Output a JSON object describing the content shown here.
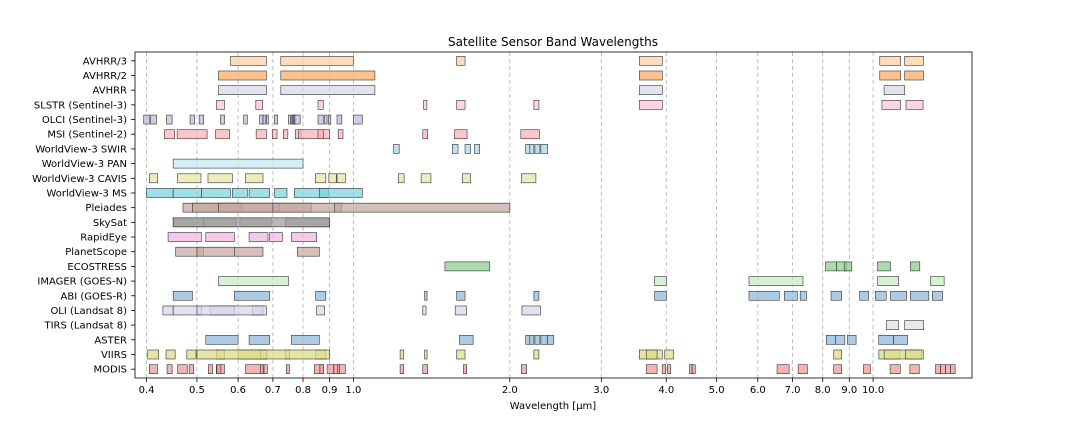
{
  "chart_data": {
    "type": "bar",
    "orientation": "horizontal",
    "title": "Satellite Sensor Band Wavelengths",
    "xlabel": "Wavelength [μm]",
    "x_scale": "log",
    "xlim": [
      0.38,
      15.5
    ],
    "x_ticks": [
      {
        "value": 0.4,
        "label": "0.4"
      },
      {
        "value": 0.5,
        "label": "0.5"
      },
      {
        "value": 0.6,
        "label": "0.6"
      },
      {
        "value": 0.7,
        "label": "0.7"
      },
      {
        "value": 0.8,
        "label": "0.8"
      },
      {
        "value": 0.9,
        "label": "0.9"
      },
      {
        "value": 1.0,
        "label": "1.0"
      },
      {
        "value": 2.0,
        "label": "2.0"
      },
      {
        "value": 3.0,
        "label": "3.0"
      },
      {
        "value": 4.0,
        "label": "4.0"
      },
      {
        "value": 5.0,
        "label": "5.0"
      },
      {
        "value": 6.0,
        "label": "6.0"
      },
      {
        "value": 7.0,
        "label": "7.0"
      },
      {
        "value": 8.0,
        "label": "8.0"
      },
      {
        "value": 9.0,
        "label": "9.0"
      },
      {
        "value": 10.0,
        "label": "10.0"
      }
    ],
    "grid": "vertical-dashed",
    "sensors": [
      {
        "name": "AVHRR/3",
        "color": "#fdd0a2",
        "bands": [
          [
            0.58,
            0.68
          ],
          [
            0.725,
            1.0
          ],
          [
            1.58,
            1.64
          ],
          [
            3.55,
            3.93
          ],
          [
            10.3,
            11.3
          ],
          [
            11.5,
            12.5
          ]
        ]
      },
      {
        "name": "AVHRR/2",
        "color": "#fdae6b",
        "bands": [
          [
            0.55,
            0.68
          ],
          [
            0.725,
            1.1
          ],
          [
            3.55,
            3.93
          ],
          [
            10.3,
            11.3
          ],
          [
            11.5,
            12.5
          ]
        ]
      },
      {
        "name": "AVHRR",
        "color": "#dadaeb",
        "bands": [
          [
            0.55,
            0.68
          ],
          [
            0.725,
            1.1
          ],
          [
            3.55,
            3.93
          ],
          [
            10.5,
            11.5
          ]
        ]
      },
      {
        "name": "SLSTR (Sentinel-3)",
        "color": "#fcc5d8",
        "bands": [
          [
            0.545,
            0.565
          ],
          [
            0.649,
            0.669
          ],
          [
            0.855,
            0.875
          ],
          [
            1.365,
            1.385
          ],
          [
            1.58,
            1.64
          ],
          [
            2.225,
            2.275
          ],
          [
            3.55,
            3.93
          ],
          [
            10.4,
            11.3
          ],
          [
            11.57,
            12.48
          ]
        ]
      },
      {
        "name": "OLCI (Sentinel-3)",
        "color": "#bcbddc",
        "bands": [
          [
            0.395,
            0.405
          ],
          [
            0.407,
            0.418
          ],
          [
            0.437,
            0.448
          ],
          [
            0.485,
            0.495
          ],
          [
            0.505,
            0.515
          ],
          [
            0.555,
            0.565
          ],
          [
            0.615,
            0.625
          ],
          [
            0.66,
            0.67
          ],
          [
            0.67,
            0.677
          ],
          [
            0.68,
            0.685
          ],
          [
            0.705,
            0.715
          ],
          [
            0.75,
            0.757
          ],
          [
            0.76,
            0.762
          ],
          [
            0.764,
            0.767
          ],
          [
            0.767,
            0.769
          ],
          [
            0.77,
            0.79
          ],
          [
            0.855,
            0.875
          ],
          [
            0.88,
            0.89
          ],
          [
            0.895,
            0.905
          ],
          [
            0.93,
            0.95
          ],
          [
            1.0,
            1.04
          ]
        ]
      },
      {
        "name": "MSI (Sentinel-2)",
        "color": "#fbb4b9",
        "bands": [
          [
            0.433,
            0.453
          ],
          [
            0.458,
            0.523
          ],
          [
            0.543,
            0.578
          ],
          [
            0.65,
            0.68
          ],
          [
            0.698,
            0.713
          ],
          [
            0.733,
            0.748
          ],
          [
            0.773,
            0.793
          ],
          [
            0.785,
            0.9
          ],
          [
            0.855,
            0.875
          ],
          [
            0.935,
            0.955
          ],
          [
            1.36,
            1.39
          ],
          [
            1.565,
            1.655
          ],
          [
            2.1,
            2.28
          ]
        ]
      },
      {
        "name": "WorldView-3 SWIR",
        "color": "#a6d8e8",
        "bands": [
          [
            1.195,
            1.225
          ],
          [
            1.55,
            1.59
          ],
          [
            1.64,
            1.68
          ],
          [
            1.71,
            1.75
          ],
          [
            2.145,
            2.185
          ],
          [
            2.185,
            2.225
          ],
          [
            2.235,
            2.285
          ],
          [
            2.295,
            2.365
          ]
        ]
      },
      {
        "name": "WorldView-3 PAN",
        "color": "#c6e9f0",
        "bands": [
          [
            0.45,
            0.8
          ]
        ]
      },
      {
        "name": "WorldView-3 CAVIS",
        "color": "#e6e6a8",
        "bands": [
          [
            0.405,
            0.42
          ],
          [
            0.459,
            0.509
          ],
          [
            0.525,
            0.585
          ],
          [
            0.62,
            0.67
          ],
          [
            0.845,
            0.885
          ],
          [
            0.897,
            0.927
          ],
          [
            0.93,
            0.965
          ],
          [
            1.22,
            1.252
          ],
          [
            1.35,
            1.41
          ],
          [
            1.62,
            1.68
          ],
          [
            2.105,
            2.245
          ]
        ]
      },
      {
        "name": "WorldView-3 MS",
        "color": "#7ed6e0",
        "bands": [
          [
            0.4,
            0.45
          ],
          [
            0.45,
            0.51
          ],
          [
            0.51,
            0.58
          ],
          [
            0.585,
            0.625
          ],
          [
            0.63,
            0.69
          ],
          [
            0.705,
            0.745
          ],
          [
            0.77,
            0.895
          ],
          [
            0.86,
            1.04
          ]
        ]
      },
      {
        "name": "Pleiades",
        "color": "#c6a8a0",
        "bands": [
          [
            0.47,
            0.83
          ],
          [
            0.49,
            0.61
          ],
          [
            0.55,
            0.72
          ],
          [
            0.7,
            0.95
          ],
          [
            0.92,
            2.0
          ]
        ]
      },
      {
        "name": "SkySat",
        "color": "#a0a0a0",
        "bands": [
          [
            0.45,
            0.515
          ],
          [
            0.515,
            0.595
          ],
          [
            0.605,
            0.695
          ],
          [
            0.74,
            0.9
          ],
          [
            0.45,
            0.9
          ]
        ]
      },
      {
        "name": "RapidEye",
        "color": "#f2b6e6",
        "bands": [
          [
            0.44,
            0.51
          ],
          [
            0.52,
            0.59
          ],
          [
            0.63,
            0.685
          ],
          [
            0.69,
            0.73
          ],
          [
            0.76,
            0.85
          ]
        ]
      },
      {
        "name": "PlanetScope",
        "color": "#c9a9a6",
        "bands": [
          [
            0.455,
            0.515
          ],
          [
            0.5,
            0.59
          ],
          [
            0.59,
            0.67
          ],
          [
            0.78,
            0.86
          ]
        ]
      },
      {
        "name": "ECOSTRESS",
        "color": "#8fcf8f",
        "bands": [
          [
            1.5,
            1.83
          ],
          [
            8.1,
            8.5
          ],
          [
            8.5,
            8.9
          ],
          [
            8.8,
            9.1
          ],
          [
            10.2,
            10.8
          ],
          [
            11.8,
            12.3
          ]
        ]
      },
      {
        "name": "IMAGER (GOES-N)",
        "color": "#c7ecc0",
        "bands": [
          [
            0.55,
            0.75
          ],
          [
            3.8,
            4.0
          ],
          [
            5.77,
            7.33
          ],
          [
            10.2,
            11.2
          ],
          [
            12.9,
            13.7
          ]
        ]
      },
      {
        "name": "ABI (GOES-R)",
        "color": "#8fbbdb",
        "bands": [
          [
            0.45,
            0.49
          ],
          [
            0.59,
            0.69
          ],
          [
            0.846,
            0.885
          ],
          [
            1.371,
            1.386
          ],
          [
            1.58,
            1.64
          ],
          [
            2.225,
            2.275
          ],
          [
            3.8,
            4.0
          ],
          [
            5.77,
            6.6
          ],
          [
            6.75,
            7.15
          ],
          [
            7.24,
            7.44
          ],
          [
            8.3,
            8.7
          ],
          [
            9.42,
            9.8
          ],
          [
            10.1,
            10.6
          ],
          [
            10.8,
            11.6
          ],
          [
            11.8,
            12.8
          ],
          [
            13.0,
            13.6
          ]
        ]
      },
      {
        "name": "OLI (Landsat 8)",
        "color": "#dcd5ea",
        "bands": [
          [
            0.43,
            0.45
          ],
          [
            0.45,
            0.51
          ],
          [
            0.53,
            0.59
          ],
          [
            0.64,
            0.67
          ],
          [
            0.5,
            0.68
          ],
          [
            0.85,
            0.88
          ],
          [
            1.36,
            1.38
          ],
          [
            1.57,
            1.65
          ],
          [
            2.11,
            2.29
          ]
        ]
      },
      {
        "name": "TIRS (Landsat 8)",
        "color": "#e0e0e0",
        "bands": [
          [
            10.6,
            11.19
          ],
          [
            11.5,
            12.51
          ]
        ]
      },
      {
        "name": "ASTER",
        "color": "#8fbbdb",
        "bands": [
          [
            0.52,
            0.6
          ],
          [
            0.63,
            0.69
          ],
          [
            0.76,
            0.86
          ],
          [
            1.6,
            1.7
          ],
          [
            2.145,
            2.185
          ],
          [
            2.185,
            2.225
          ],
          [
            2.235,
            2.285
          ],
          [
            2.295,
            2.365
          ],
          [
            2.36,
            2.43
          ],
          [
            8.125,
            8.475
          ],
          [
            8.475,
            8.825
          ],
          [
            8.925,
            9.275
          ],
          [
            10.25,
            10.95
          ],
          [
            10.95,
            11.65
          ]
        ]
      },
      {
        "name": "VIIRS",
        "color": "#dcdc8a",
        "bands": [
          [
            0.402,
            0.422
          ],
          [
            0.436,
            0.454
          ],
          [
            0.478,
            0.498
          ],
          [
            0.545,
            0.565
          ],
          [
            0.6,
            0.68
          ],
          [
            0.662,
            0.682
          ],
          [
            0.739,
            0.754
          ],
          [
            0.846,
            0.885
          ],
          [
            0.5,
            0.9
          ],
          [
            1.23,
            1.25
          ],
          [
            1.371,
            1.386
          ],
          [
            1.58,
            1.64
          ],
          [
            2.225,
            2.275
          ],
          [
            3.55,
            3.93
          ],
          [
            3.66,
            3.84
          ],
          [
            3.973,
            4.128
          ],
          [
            8.4,
            8.7
          ],
          [
            10.26,
            11.26
          ],
          [
            10.5,
            12.4
          ],
          [
            11.54,
            12.49
          ]
        ]
      },
      {
        "name": "MODIS",
        "color": "#f09a9a",
        "bands": [
          [
            0.405,
            0.42
          ],
          [
            0.438,
            0.448
          ],
          [
            0.459,
            0.479
          ],
          [
            0.483,
            0.493
          ],
          [
            0.526,
            0.536
          ],
          [
            0.545,
            0.565
          ],
          [
            0.546,
            0.556
          ],
          [
            0.62,
            0.67
          ],
          [
            0.662,
            0.672
          ],
          [
            0.673,
            0.683
          ],
          [
            0.743,
            0.753
          ],
          [
            0.841,
            0.876
          ],
          [
            0.862,
            0.877
          ],
          [
            0.89,
            0.92
          ],
          [
            0.915,
            0.965
          ],
          [
            0.931,
            0.941
          ],
          [
            1.23,
            1.25
          ],
          [
            1.36,
            1.39
          ],
          [
            1.628,
            1.652
          ],
          [
            2.105,
            2.155
          ],
          [
            3.66,
            3.84
          ],
          [
            3.929,
            3.989
          ],
          [
            4.02,
            4.08
          ],
          [
            4.433,
            4.498
          ],
          [
            4.482,
            4.549
          ],
          [
            6.535,
            6.895
          ],
          [
            7.175,
            7.475
          ],
          [
            8.4,
            8.7
          ],
          [
            9.58,
            9.88
          ],
          [
            10.78,
            11.28
          ],
          [
            11.77,
            12.27
          ],
          [
            13.185,
            13.485
          ],
          [
            13.485,
            13.785
          ],
          [
            13.785,
            14.085
          ],
          [
            14.085,
            14.385
          ]
        ]
      }
    ]
  }
}
